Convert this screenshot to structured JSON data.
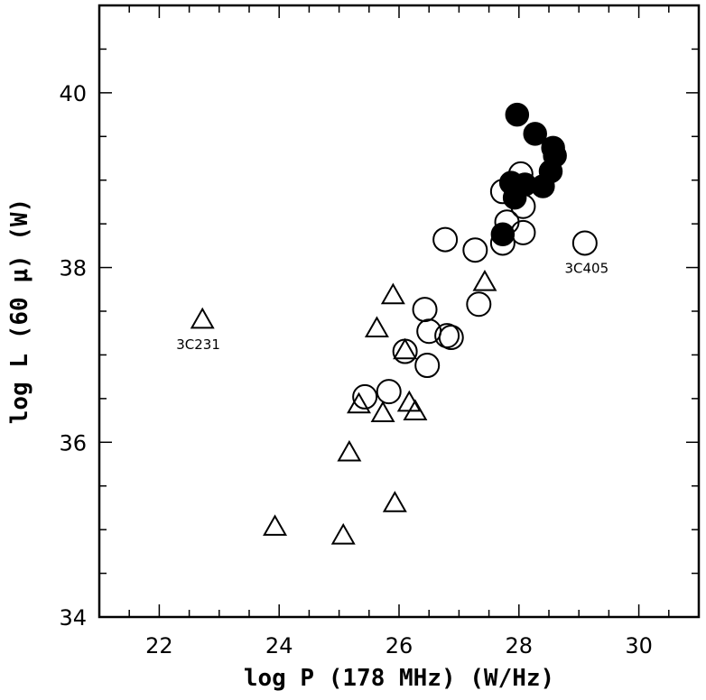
{
  "chart_data": {
    "type": "scatter",
    "xlabel": "log P (178 MHz) (W/Hz)",
    "ylabel": "log L (60 μ) (W)",
    "xlim": [
      21,
      31
    ],
    "ylim": [
      34,
      41
    ],
    "xticks": [
      "22",
      "24",
      "26",
      "28",
      "30"
    ],
    "yticks": [
      "34",
      "36",
      "38",
      "40"
    ],
    "grid": false,
    "series": [
      {
        "marker": "triangle-open",
        "points": [
          {
            "x": 22.72,
            "y": 37.4
          },
          {
            "x": 23.93,
            "y": 35.03
          },
          {
            "x": 25.07,
            "y": 34.93
          },
          {
            "x": 25.17,
            "y": 35.88
          },
          {
            "x": 25.33,
            "y": 36.43
          },
          {
            "x": 25.63,
            "y": 37.3
          },
          {
            "x": 25.73,
            "y": 36.33
          },
          {
            "x": 25.9,
            "y": 37.68
          },
          {
            "x": 25.93,
            "y": 35.3
          },
          {
            "x": 26.1,
            "y": 37.05
          },
          {
            "x": 26.17,
            "y": 36.45
          },
          {
            "x": 26.27,
            "y": 36.35
          },
          {
            "x": 27.43,
            "y": 37.83
          }
        ]
      },
      {
        "marker": "circle-open",
        "points": [
          {
            "x": 25.43,
            "y": 36.52
          },
          {
            "x": 25.83,
            "y": 36.58
          },
          {
            "x": 26.1,
            "y": 37.04
          },
          {
            "x": 26.43,
            "y": 37.52
          },
          {
            "x": 26.5,
            "y": 37.27
          },
          {
            "x": 26.47,
            "y": 36.88
          },
          {
            "x": 26.8,
            "y": 37.22
          },
          {
            "x": 26.87,
            "y": 37.2
          },
          {
            "x": 26.77,
            "y": 38.32
          },
          {
            "x": 27.27,
            "y": 38.2
          },
          {
            "x": 27.33,
            "y": 37.58
          },
          {
            "x": 27.73,
            "y": 38.28
          },
          {
            "x": 27.8,
            "y": 38.52
          },
          {
            "x": 27.73,
            "y": 38.87
          },
          {
            "x": 27.97,
            "y": 38.93
          },
          {
            "x": 28.03,
            "y": 39.07
          },
          {
            "x": 28.07,
            "y": 38.7
          },
          {
            "x": 28.07,
            "y": 38.4
          },
          {
            "x": 29.1,
            "y": 38.28
          }
        ]
      },
      {
        "marker": "circle-filled",
        "points": [
          {
            "x": 27.97,
            "y": 39.75
          },
          {
            "x": 28.27,
            "y": 39.53
          },
          {
            "x": 28.57,
            "y": 39.37
          },
          {
            "x": 28.6,
            "y": 39.28
          },
          {
            "x": 28.53,
            "y": 39.1
          },
          {
            "x": 28.4,
            "y": 38.93
          },
          {
            "x": 28.1,
            "y": 38.95
          },
          {
            "x": 27.87,
            "y": 38.97
          },
          {
            "x": 27.93,
            "y": 38.8
          },
          {
            "x": 27.73,
            "y": 38.38
          }
        ]
      }
    ],
    "annotations": [
      {
        "text": "3C231",
        "x": 22.65,
        "y": 37.13
      },
      {
        "text": "3C405",
        "x": 29.13,
        "y": 38.0
      }
    ]
  }
}
